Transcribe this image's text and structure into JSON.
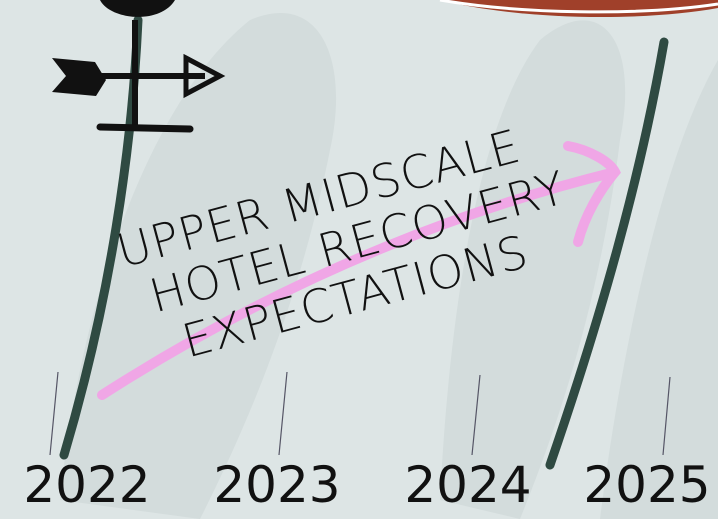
{
  "title": {
    "lines": [
      "UPPER MIDSCALE",
      "HOTEL RECOVERY",
      "EXPECTATIONS"
    ]
  },
  "years": [
    "2022",
    "2023",
    "2024",
    "2025"
  ]
}
